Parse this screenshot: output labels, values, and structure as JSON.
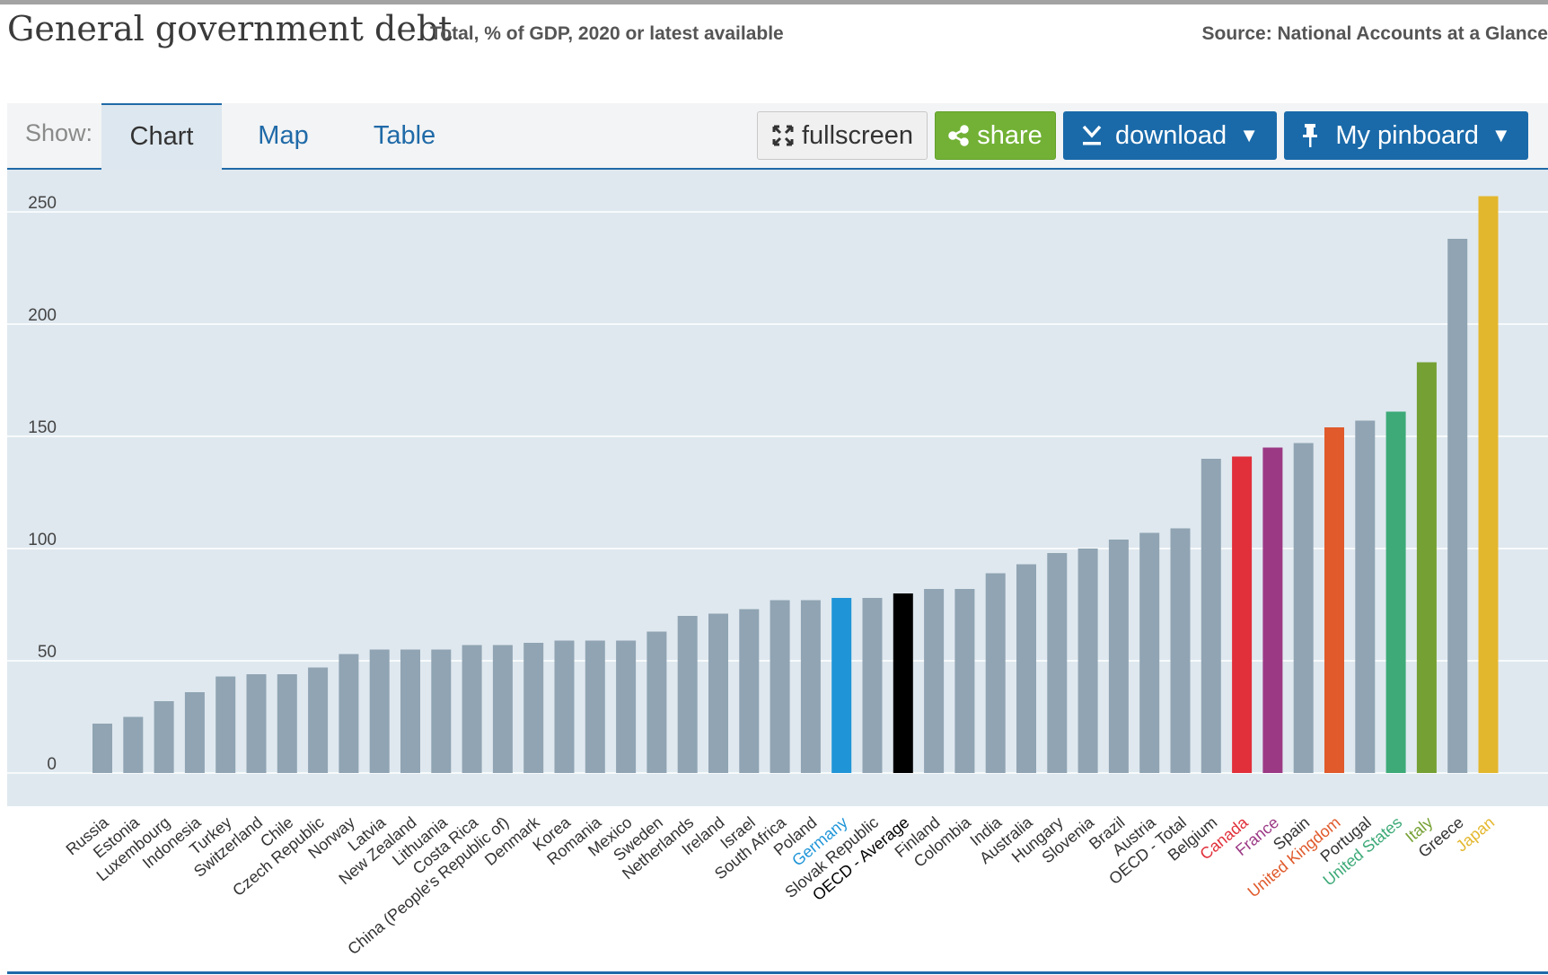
{
  "header": {
    "title": "General government debt",
    "subtitle": "Total, % of GDP, 2020 or latest available",
    "source": "Source: National Accounts at a Glance"
  },
  "toolbar": {
    "show_label": "Show:",
    "tabs": [
      {
        "label": "Chart",
        "active": true
      },
      {
        "label": "Map",
        "active": false
      },
      {
        "label": "Table",
        "active": false
      }
    ],
    "fullscreen_label": "fullscreen",
    "share_label": "share",
    "download_label": "download",
    "pinboard_label": "My pinboard",
    "dropdown_arrow": "▼",
    "icons": {
      "fullscreen": "expand-arrows-icon",
      "share": "share-icon",
      "download": "download-icon",
      "pinboard": "pin-icon",
      "dropdown": "caret-down-icon"
    }
  },
  "colors": {
    "default_bar": "#90a4b3",
    "plot_background": "#dfe8ef",
    "accent_blue": "#1a6aa9",
    "share_green": "#72b135"
  },
  "chart_data": {
    "type": "bar",
    "title": "General government debt",
    "subtitle": "Total, % of GDP, 2020 or latest available",
    "xlabel": "",
    "ylabel": "",
    "ylim": [
      0,
      260
    ],
    "yticks": [
      0,
      50,
      100,
      150,
      200,
      250
    ],
    "grid": true,
    "categories": [
      "Russia",
      "Estonia",
      "Luxembourg",
      "Indonesia",
      "Turkey",
      "Switzerland",
      "Chile",
      "Czech Republic",
      "Norway",
      "Latvia",
      "New Zealand",
      "Lithuania",
      "Costa Rica",
      "China (People's Republic of)",
      "Denmark",
      "Korea",
      "Romania",
      "Mexico",
      "Sweden",
      "Netherlands",
      "Ireland",
      "Israel",
      "South Africa",
      "Poland",
      "Germany",
      "Slovak Republic",
      "OECD - Average",
      "Finland",
      "Colombia",
      "India",
      "Australia",
      "Hungary",
      "Slovenia",
      "Brazil",
      "Austria",
      "OECD - Total",
      "Belgium",
      "Canada",
      "France",
      "Spain",
      "United Kingdom",
      "Portugal",
      "United States",
      "Italy",
      "Greece",
      "Japan"
    ],
    "values": [
      22,
      25,
      32,
      36,
      43,
      44,
      44,
      47,
      53,
      55,
      55,
      55,
      57,
      57,
      58,
      59,
      59,
      59,
      63,
      70,
      71,
      73,
      77,
      77,
      78,
      78,
      80,
      82,
      82,
      89,
      93,
      98,
      100,
      104,
      107,
      109,
      140,
      141,
      145,
      147,
      154,
      157,
      161,
      183,
      238,
      257
    ],
    "highlights": {
      "Germany": "#1f95d8",
      "OECD - Average": "#000000",
      "Canada": "#e1303a",
      "France": "#9b3985",
      "United Kingdom": "#e05a2b",
      "United States": "#3daa78",
      "Italy": "#75a033",
      "Japan": "#e3b72d"
    }
  }
}
